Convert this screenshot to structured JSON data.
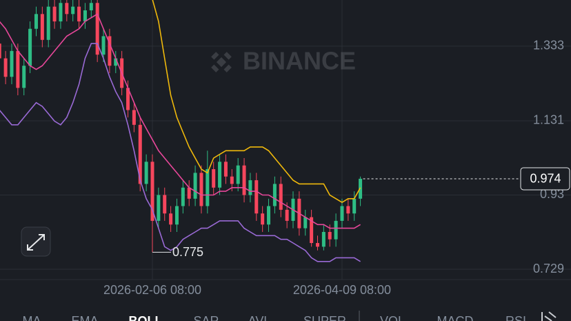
{
  "chart_data": {
    "type": "candlestick",
    "watermark": "BINANCE",
    "categories": [
      null,
      null,
      null,
      null,
      null,
      null,
      null,
      null,
      null,
      null,
      null,
      null,
      null,
      null,
      null,
      null,
      null,
      null,
      null,
      null,
      null,
      null,
      null,
      null,
      null,
      "2026-02-06 08:00",
      null,
      null,
      null,
      null,
      null,
      null,
      null,
      null,
      null,
      null,
      null,
      null,
      null,
      null,
      null,
      null,
      null,
      null,
      null,
      null,
      null,
      null,
      null,
      null,
      null,
      null,
      null,
      null,
      null,
      null,
      "2026-04-09 08:00",
      null,
      null,
      null
    ],
    "open": [
      1.34,
      1.3,
      1.25,
      1.32,
      1.22,
      1.28,
      1.38,
      1.42,
      1.35,
      1.44,
      1.4,
      1.45,
      1.42,
      1.44,
      1.4,
      1.43,
      1.45,
      1.31,
      1.36,
      1.28,
      1.3,
      1.22,
      1.16,
      1.12,
      0.96,
      1.02,
      0.86,
      0.93,
      0.88,
      0.85,
      0.9,
      0.95,
      0.92,
      0.99,
      0.9,
      1.0,
      0.95,
      1.02,
      0.98,
      0.96,
      1.01,
      0.93,
      0.97,
      0.88,
      0.85,
      0.9,
      0.96,
      0.89,
      0.86,
      0.92,
      0.84,
      0.87,
      0.8,
      0.79,
      0.83,
      0.81,
      0.86,
      0.9,
      0.88,
      0.92
    ],
    "high": [
      1.36,
      1.32,
      1.34,
      1.34,
      1.3,
      1.4,
      1.44,
      1.44,
      1.46,
      1.46,
      1.47,
      1.47,
      1.46,
      1.46,
      1.45,
      1.47,
      1.47,
      1.38,
      1.38,
      1.32,
      1.32,
      1.24,
      1.18,
      1.14,
      1.04,
      1.04,
      0.95,
      0.95,
      0.9,
      0.92,
      0.97,
      0.97,
      1.01,
      1.01,
      1.05,
      1.02,
      1.04,
      1.04,
      1.0,
      1.03,
      1.03,
      0.99,
      0.99,
      0.9,
      0.92,
      0.98,
      0.98,
      0.91,
      0.94,
      0.94,
      0.89,
      0.89,
      0.82,
      0.85,
      0.85,
      0.88,
      0.92,
      0.92,
      0.94,
      0.98
    ],
    "low": [
      1.28,
      1.23,
      1.23,
      1.2,
      1.2,
      1.26,
      1.36,
      1.33,
      1.33,
      1.38,
      1.38,
      1.4,
      1.4,
      1.38,
      1.38,
      1.41,
      1.29,
      1.29,
      1.26,
      1.26,
      1.2,
      1.14,
      1.1,
      0.94,
      0.94,
      0.775,
      0.84,
      0.86,
      0.83,
      0.83,
      0.88,
      0.9,
      0.9,
      0.88,
      0.88,
      0.93,
      0.93,
      0.96,
      0.94,
      0.94,
      0.91,
      0.91,
      0.86,
      0.83,
      0.83,
      0.88,
      0.87,
      0.84,
      0.84,
      0.82,
      0.82,
      0.79,
      0.78,
      0.78,
      0.79,
      0.79,
      0.84,
      0.86,
      0.86,
      0.9
    ],
    "close": [
      1.3,
      1.25,
      1.32,
      1.22,
      1.28,
      1.38,
      1.42,
      1.35,
      1.44,
      1.4,
      1.45,
      1.42,
      1.44,
      1.4,
      1.43,
      1.45,
      1.31,
      1.36,
      1.28,
      1.3,
      1.22,
      1.16,
      1.12,
      0.96,
      1.02,
      0.86,
      0.93,
      0.88,
      0.85,
      0.9,
      0.95,
      0.92,
      0.99,
      0.9,
      1.0,
      0.95,
      1.02,
      0.98,
      0.96,
      1.01,
      0.93,
      0.97,
      0.88,
      0.85,
      0.9,
      0.96,
      0.89,
      0.86,
      0.92,
      0.84,
      0.87,
      0.8,
      0.79,
      0.83,
      0.81,
      0.86,
      0.9,
      0.88,
      0.92,
      0.974
    ],
    "up_color": "#2ebd85",
    "down_color": "#f6465d",
    "bands": [
      {
        "color": "#f0b90b",
        "values": [
          1.6,
          1.6,
          1.6,
          1.6,
          1.62,
          1.62,
          1.62,
          1.64,
          1.64,
          1.64,
          1.64,
          1.64,
          1.64,
          1.62,
          1.62,
          1.6,
          1.6,
          1.58,
          1.56,
          1.54,
          1.52,
          1.5,
          1.49,
          1.48,
          1.47,
          1.46,
          1.4,
          1.3,
          1.2,
          1.14,
          1.1,
          1.06,
          1.03,
          1.0,
          0.99,
          1.03,
          1.04,
          1.05,
          1.05,
          1.05,
          1.05,
          1.06,
          1.06,
          1.06,
          1.05,
          1.03,
          1.01,
          0.99,
          0.97,
          0.96,
          0.96,
          0.96,
          0.96,
          0.96,
          0.93,
          0.92,
          0.91,
          0.92,
          0.92,
          0.95
        ]
      },
      {
        "color": "#e8479a",
        "values": [
          1.4,
          1.38,
          1.35,
          1.32,
          1.3,
          1.28,
          1.27,
          1.28,
          1.3,
          1.32,
          1.34,
          1.36,
          1.37,
          1.38,
          1.4,
          1.41,
          1.42,
          1.38,
          1.34,
          1.3,
          1.26,
          1.22,
          1.18,
          1.14,
          1.11,
          1.08,
          1.05,
          1.03,
          1.01,
          0.99,
          0.97,
          0.95,
          0.94,
          0.93,
          0.93,
          0.93,
          0.94,
          0.94,
          0.95,
          0.95,
          0.95,
          0.94,
          0.94,
          0.93,
          0.93,
          0.92,
          0.91,
          0.9,
          0.89,
          0.88,
          0.87,
          0.86,
          0.85,
          0.85,
          0.84,
          0.84,
          0.84,
          0.84,
          0.84,
          0.85
        ]
      },
      {
        "color": "#9a6ad6",
        "values": [
          1.16,
          1.14,
          1.12,
          1.12,
          1.14,
          1.16,
          1.18,
          1.17,
          1.15,
          1.13,
          1.12,
          1.14,
          1.18,
          1.23,
          1.3,
          1.34,
          1.34,
          1.3,
          1.25,
          1.21,
          1.18,
          1.12,
          1.05,
          0.97,
          0.92,
          0.89,
          0.84,
          0.79,
          0.78,
          0.79,
          0.81,
          0.82,
          0.83,
          0.84,
          0.84,
          0.85,
          0.86,
          0.86,
          0.86,
          0.86,
          0.84,
          0.83,
          0.82,
          0.82,
          0.82,
          0.82,
          0.81,
          0.81,
          0.8,
          0.79,
          0.78,
          0.76,
          0.75,
          0.75,
          0.75,
          0.76,
          0.76,
          0.76,
          0.76,
          0.75
        ]
      }
    ],
    "ylim": [
      0.701,
      1.458
    ],
    "yticks": [
      1.333,
      1.131,
      0.93,
      0.729
    ],
    "grid": true,
    "last_price": 0.974,
    "low_annotation": 0.775
  },
  "ui": {
    "indicator_tabs": [
      "MA",
      "EMA",
      "BOLL",
      "SAR",
      "AVL",
      "SUPER",
      "VOL",
      "MACD",
      "RSI"
    ],
    "selected_tab": 2
  }
}
